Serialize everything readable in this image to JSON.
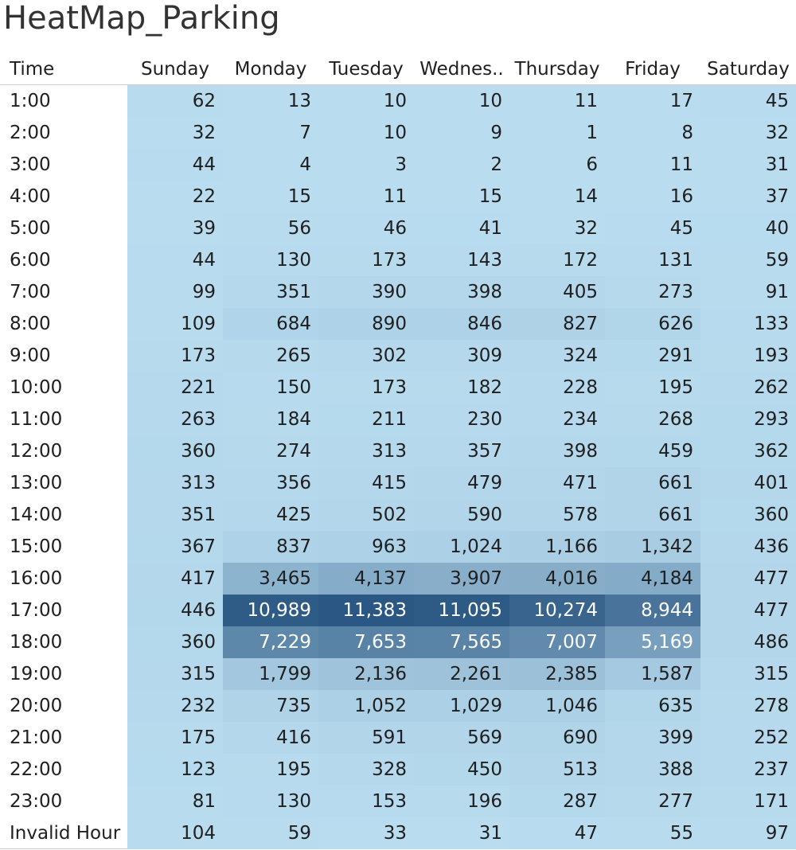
{
  "title": "HeatMap_Parking",
  "chart_data": {
    "type": "heatmap",
    "title": "HeatMap_Parking",
    "row_header": "Time",
    "columns": [
      "Sunday",
      "Monday",
      "Tuesday",
      "Wednes..",
      "Thursday",
      "Friday",
      "Saturday"
    ],
    "rows": [
      "1:00",
      "2:00",
      "3:00",
      "4:00",
      "5:00",
      "6:00",
      "7:00",
      "8:00",
      "9:00",
      "10:00",
      "11:00",
      "12:00",
      "13:00",
      "14:00",
      "15:00",
      "16:00",
      "17:00",
      "18:00",
      "19:00",
      "20:00",
      "21:00",
      "22:00",
      "23:00",
      "Invalid Hour"
    ],
    "values": [
      [
        62,
        13,
        10,
        10,
        11,
        17,
        45
      ],
      [
        32,
        7,
        10,
        9,
        1,
        8,
        32
      ],
      [
        44,
        4,
        3,
        2,
        6,
        11,
        31
      ],
      [
        22,
        15,
        11,
        15,
        14,
        16,
        37
      ],
      [
        39,
        56,
        46,
        41,
        32,
        45,
        40
      ],
      [
        44,
        130,
        173,
        143,
        172,
        131,
        59
      ],
      [
        99,
        351,
        390,
        398,
        405,
        273,
        91
      ],
      [
        109,
        684,
        890,
        846,
        827,
        626,
        133
      ],
      [
        173,
        265,
        302,
        309,
        324,
        291,
        193
      ],
      [
        221,
        150,
        173,
        182,
        228,
        195,
        262
      ],
      [
        263,
        184,
        211,
        230,
        234,
        268,
        293
      ],
      [
        360,
        274,
        313,
        357,
        398,
        459,
        362
      ],
      [
        313,
        356,
        415,
        479,
        471,
        661,
        401
      ],
      [
        351,
        425,
        502,
        590,
        578,
        661,
        360
      ],
      [
        367,
        837,
        963,
        1024,
        1166,
        1342,
        436
      ],
      [
        417,
        3465,
        4137,
        3907,
        4016,
        4184,
        477
      ],
      [
        446,
        10989,
        11383,
        11095,
        10274,
        8944,
        477
      ],
      [
        360,
        7229,
        7653,
        7565,
        7007,
        5169,
        486
      ],
      [
        315,
        1799,
        2136,
        2261,
        2385,
        1587,
        315
      ],
      [
        232,
        735,
        1052,
        1029,
        1046,
        635,
        278
      ],
      [
        175,
        416,
        591,
        569,
        690,
        399,
        252
      ],
      [
        123,
        195,
        328,
        450,
        513,
        388,
        237
      ],
      [
        81,
        130,
        153,
        196,
        287,
        277,
        171
      ],
      [
        104,
        59,
        33,
        31,
        47,
        55,
        97
      ]
    ],
    "color_low": "#b9dcef",
    "color_high": "#2a5783",
    "light_text_color": "#ffffff",
    "dark_text_color": "#1f1f1f"
  }
}
